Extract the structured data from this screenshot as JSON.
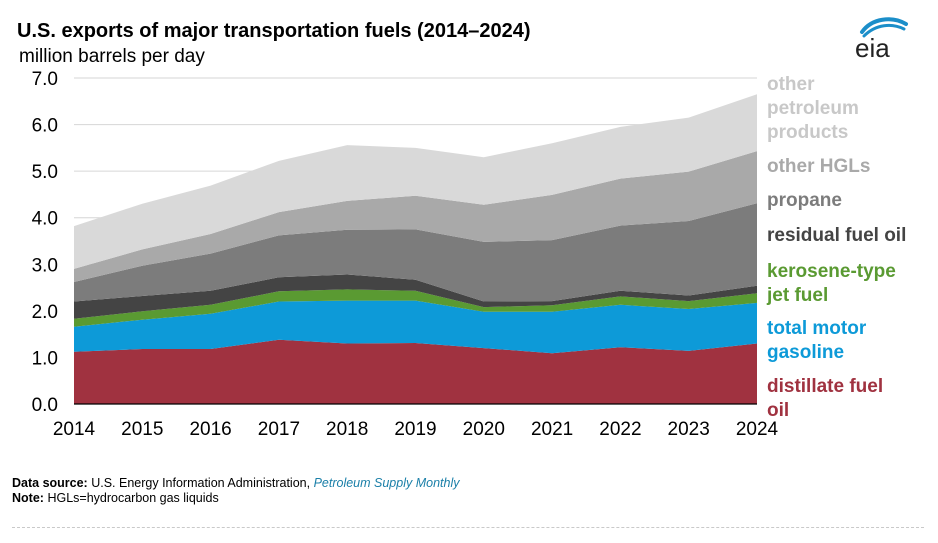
{
  "header": {
    "title": "U.S. exports of major transportation fuels (2014–2024)",
    "unit": "million barrels per day",
    "logo_text": "eia"
  },
  "chart_data": {
    "type": "area",
    "stacked": true,
    "title": "U.S. exports of major transportation fuels (2014–2024)",
    "ylabel": "million barrels per day",
    "xlabel": "",
    "x": [
      2014,
      2015,
      2016,
      2017,
      2018,
      2019,
      2020,
      2021,
      2022,
      2023,
      2024
    ],
    "ylim": [
      0,
      7
    ],
    "yticks": [
      "0.0",
      "1.0",
      "2.0",
      "3.0",
      "4.0",
      "5.0",
      "6.0",
      "7.0"
    ],
    "grid": "horizontal",
    "legend": "right",
    "series": [
      {
        "name": "distillate fuel oil",
        "label_lines": [
          "distillate fuel",
          "oil"
        ],
        "color": "#a03240",
        "values": [
          1.12,
          1.18,
          1.18,
          1.38,
          1.3,
          1.31,
          1.2,
          1.09,
          1.22,
          1.14,
          1.3
        ]
      },
      {
        "name": "total motor gasoline",
        "label_lines": [
          "total motor",
          "gasoline"
        ],
        "color": "#0d9ad8",
        "values": [
          0.54,
          0.63,
          0.76,
          0.82,
          0.92,
          0.91,
          0.78,
          0.89,
          0.91,
          0.9,
          0.87
        ]
      },
      {
        "name": "kerosene-type jet fuel",
        "label_lines": [
          "kerosene-type",
          "jet fuel"
        ],
        "color": "#5a9a32",
        "values": [
          0.17,
          0.18,
          0.19,
          0.22,
          0.24,
          0.21,
          0.1,
          0.14,
          0.18,
          0.17,
          0.21
        ]
      },
      {
        "name": "residual fuel oil",
        "label_lines": [
          "residual fuel oil"
        ],
        "color": "#444444",
        "values": [
          0.37,
          0.33,
          0.3,
          0.3,
          0.32,
          0.24,
          0.12,
          0.09,
          0.12,
          0.12,
          0.16
        ]
      },
      {
        "name": "propane",
        "label_lines": [
          "propane"
        ],
        "color": "#7c7c7c",
        "values": [
          0.42,
          0.65,
          0.8,
          0.9,
          0.96,
          1.08,
          1.28,
          1.31,
          1.4,
          1.6,
          1.77
        ]
      },
      {
        "name": "other HGLs",
        "label_lines": [
          "other HGLs"
        ],
        "color": "#a9a9a9",
        "values": [
          0.28,
          0.35,
          0.42,
          0.5,
          0.62,
          0.72,
          0.8,
          0.97,
          1.01,
          1.06,
          1.12
        ]
      },
      {
        "name": "other petroleum products",
        "label_lines": [
          "other",
          "petroleum",
          "products"
        ],
        "color": "#d9d9d9",
        "values": [
          0.92,
          0.98,
          1.04,
          1.1,
          1.2,
          1.03,
          1.02,
          1.11,
          1.11,
          1.16,
          1.22
        ]
      }
    ]
  },
  "footer": {
    "source_label": "Data source:",
    "source_text": "U.S. Energy Information Administration,",
    "source_publication": "Petroleum Supply Monthly",
    "note_label": "Note:",
    "note_text": "HGLs=hydrocarbon gas liquids"
  }
}
